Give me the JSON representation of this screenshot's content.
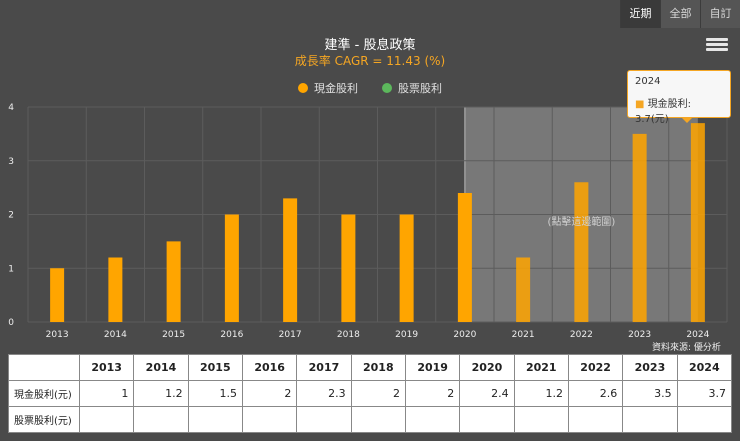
{
  "range_tabs": [
    {
      "label": "近期",
      "active": true
    },
    {
      "label": "全部",
      "active": false
    },
    {
      "label": "自訂",
      "active": false
    }
  ],
  "tooltip": {
    "year": "2024",
    "text": "現金股利: 3.7(元)"
  },
  "source": "資料來源: 優分析",
  "colors": {
    "cash": "#ffa500",
    "stock": "#5cb85c",
    "highlight_band": "#808080"
  },
  "chart_data": {
    "type": "bar",
    "title": "建準 - 股息政策",
    "subtitle": "成長率 CAGR = 11.43 (%)",
    "categories": [
      "2013",
      "2014",
      "2015",
      "2016",
      "2017",
      "2018",
      "2019",
      "2020",
      "2021",
      "2022",
      "2023",
      "2024"
    ],
    "series": [
      {
        "name": "現金股利",
        "values": [
          1,
          1.2,
          1.5,
          2,
          2.3,
          2,
          2,
          2.4,
          1.2,
          2.6,
          3.5,
          3.7
        ]
      },
      {
        "name": "股票股利",
        "values": [
          null,
          null,
          null,
          null,
          null,
          null,
          null,
          null,
          null,
          null,
          null,
          null
        ]
      }
    ],
    "ylim": [
      0,
      4
    ],
    "yticks": [
      0,
      1,
      2,
      3,
      4
    ],
    "highlight_range": [
      "2020",
      "2024"
    ],
    "annotation": "(點擊這邊範圍)",
    "grid": true,
    "legend": "top"
  },
  "table": {
    "header": [
      "",
      "2013",
      "2014",
      "2015",
      "2016",
      "2017",
      "2018",
      "2019",
      "2020",
      "2021",
      "2022",
      "2023",
      "2024"
    ],
    "rows": [
      {
        "label": "現金股利(元)",
        "cells": [
          "1",
          "1.2",
          "1.5",
          "2",
          "2.3",
          "2",
          "2",
          "2.4",
          "1.2",
          "2.6",
          "3.5",
          "3.7"
        ]
      },
      {
        "label": "股票股利(元)",
        "cells": [
          "",
          "",
          "",
          "",
          "",
          "",
          "",
          "",
          "",
          "",
          "",
          ""
        ]
      }
    ]
  }
}
